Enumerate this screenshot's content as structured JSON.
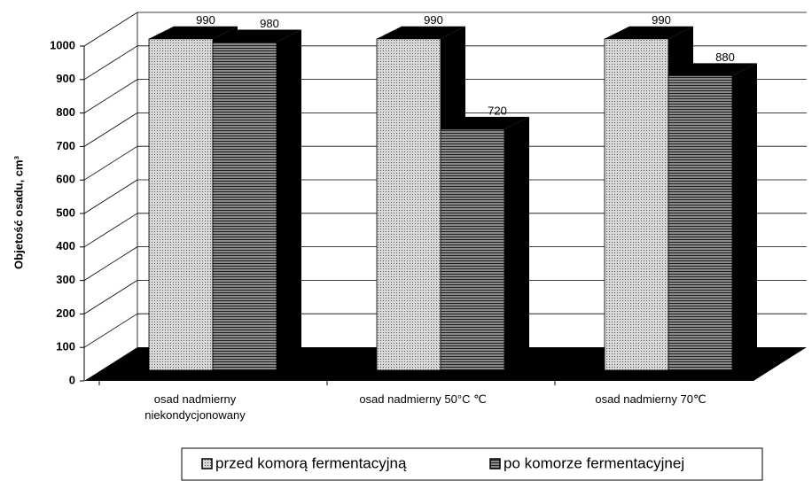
{
  "chart_data": {
    "type": "bar3d",
    "y_label": "Objetość osadu, cm³",
    "categories": [
      "osad nadmierny niekondycjonowany",
      "osad nadmierny 50°C ℃",
      "osad nadmierny 70℃"
    ],
    "series": [
      {
        "name": "przed komorą fermentacyjną",
        "color": "#d8d8d8",
        "values": [
          990,
          990,
          990
        ]
      },
      {
        "name": "po komorze fermentacyjnej",
        "color": "#8a8a8a",
        "values": [
          980,
          720,
          880
        ]
      }
    ],
    "ylim": [
      0,
      1000
    ],
    "yticks": [
      0,
      100,
      200,
      300,
      400,
      500,
      600,
      700,
      800,
      900,
      1000
    ],
    "grid": true
  }
}
